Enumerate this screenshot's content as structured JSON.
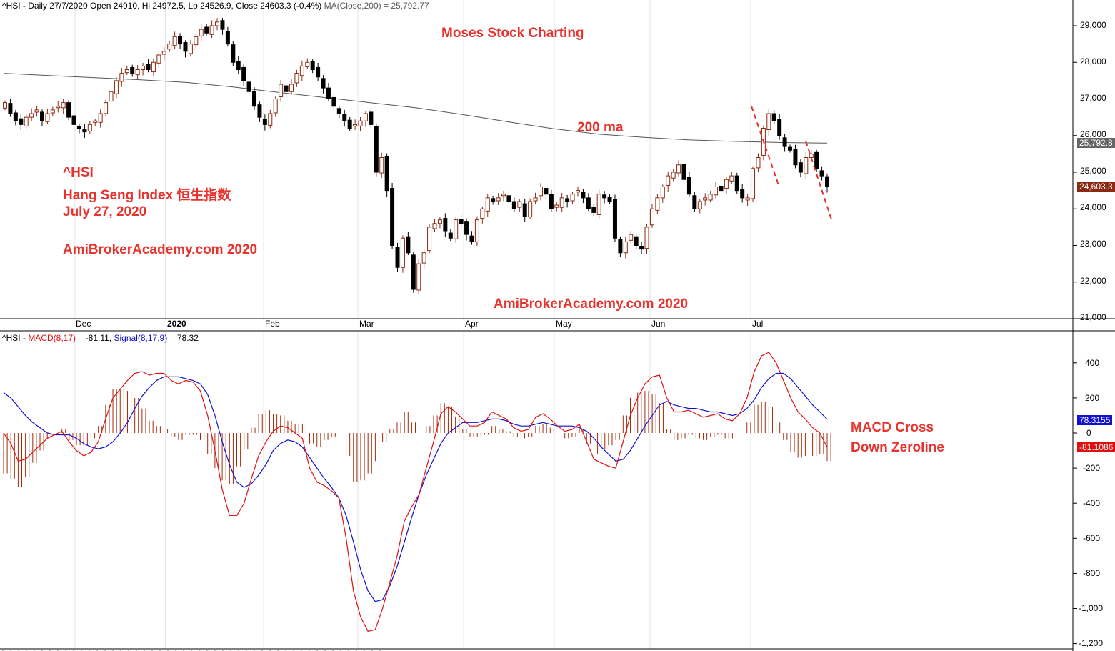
{
  "header": {
    "price_title": "^HSI - Daily 27/7/2020 Open 24910, Hi 24972.5, Lo 24526.9, Close 24603.3 (-0.4%)",
    "ma_title": "MA(Close,200) = 25,792.77",
    "macd_prefix": "^HSI - ",
    "macd_name": "MACD(8,17)",
    "macd_value": " = -81.11, ",
    "signal_name": "Signal(8,17,9)",
    "signal_value": " = 78.32"
  },
  "annotations": {
    "brand_top": "Moses Stock Charting",
    "ma_label": "200 ma",
    "ticker": "^HSI",
    "index_name": "Hang Seng Index 恒生指数",
    "date": "July 27, 2020",
    "site_left": "AmiBrokerAcademy.com  2020",
    "site_bottom": "AmiBrokerAcademy.com  2020",
    "macd_note_1": "MACD Cross",
    "macd_note_2": "Down Zeroline"
  },
  "colors": {
    "up_candle": "#8b2a10",
    "down_candle": "#000000",
    "ma_line": "#555555",
    "macd_line": "#e01010",
    "signal_line": "#1010d0",
    "histogram": "#a52a08",
    "annotation": "#e8322d"
  },
  "chart_data": [
    {
      "type": "candlestick",
      "ticker": "^HSI",
      "x_labels": [
        "Dec",
        "2020",
        "Feb",
        "Mar",
        "Apr",
        "May",
        "Jun",
        "Jul"
      ],
      "y_ticks": [
        "29,000",
        "28,000",
        "27,000",
        "26,000",
        "25,000",
        "24,000",
        "23,000",
        "22,000",
        "21,000"
      ],
      "ylim": [
        20950,
        29450
      ],
      "ma_period": 200,
      "ma_last_label": "25,792.8",
      "close_last_label": "24,603.3",
      "close_series": [
        26900,
        26600,
        26400,
        26300,
        26500,
        26600,
        26700,
        26400,
        26600,
        26700,
        26800,
        26900,
        26500,
        26300,
        26200,
        26100,
        26300,
        26400,
        26600,
        26900,
        27200,
        27500,
        27700,
        27800,
        27700,
        27800,
        27900,
        27800,
        28000,
        28200,
        28300,
        28500,
        28700,
        28500,
        28300,
        28500,
        28700,
        28900,
        28800,
        29000,
        29100,
        28900,
        28500,
        28000,
        27800,
        27500,
        27200,
        26800,
        26500,
        26300,
        26600,
        27000,
        27400,
        27200,
        27400,
        27700,
        27900,
        28000,
        27800,
        27600,
        27300,
        27000,
        26800,
        26600,
        26400,
        26200,
        26300,
        26400,
        26600,
        26300,
        25000,
        25400,
        24500,
        23000,
        22400,
        23200,
        22800,
        21800,
        22500,
        22800,
        23500,
        23600,
        23700,
        23400,
        23200,
        23700,
        23600,
        23300,
        23100,
        23700,
        24000,
        24300,
        24200,
        24300,
        24400,
        24200,
        24000,
        24200,
        23800,
        24200,
        24300,
        24600,
        24400,
        24000,
        24100,
        24300,
        24200,
        24400,
        24500,
        24300,
        24000,
        23900,
        24400,
        24300,
        24200,
        23200,
        22800,
        23100,
        23300,
        23000,
        22900,
        23500,
        24000,
        24300,
        24600,
        24900,
        25000,
        25200,
        24800,
        24400,
        24000,
        24200,
        24300,
        24400,
        24600,
        24500,
        24800,
        24900,
        24500,
        24300,
        24300,
        25100,
        25400,
        26200,
        26600,
        26400,
        26000,
        25700,
        25600,
        25200,
        25000,
        25400,
        25500,
        25100,
        24900,
        24600
      ],
      "ma_series": [
        27700,
        27640,
        27580,
        27520,
        27450,
        27330,
        27180,
        27040,
        26900,
        26760,
        26580,
        26380,
        26190,
        26040,
        25950,
        25880,
        25840,
        25810,
        25795
      ]
    },
    {
      "type": "line",
      "title": "MACD(8,17)",
      "y_ticks": [
        "400",
        "200",
        "0",
        "-200",
        "-400",
        "-600",
        "-800",
        "-1,000",
        "-1,200"
      ],
      "ylim": [
        -1230,
        560
      ],
      "series": [
        {
          "name": "MACD(8,17)",
          "last_label": "-81.1086",
          "values": [
            0,
            -60,
            -160,
            -150,
            -110,
            -70,
            -30,
            -10,
            10,
            -50,
            -100,
            -130,
            -110,
            -50,
            80,
            200,
            250,
            300,
            340,
            350,
            330,
            340,
            340,
            300,
            280,
            300,
            290,
            240,
            100,
            -100,
            -320,
            -470,
            -470,
            -400,
            -260,
            -130,
            -50,
            10,
            40,
            30,
            0,
            -30,
            -200,
            -280,
            -300,
            -330,
            -370,
            -600,
            -900,
            -1050,
            -1130,
            -1120,
            -1000,
            -850,
            -700,
            -500,
            -420,
            -350,
            -200,
            -50,
            110,
            150,
            120,
            80,
            40,
            40,
            60,
            120,
            100,
            80,
            30,
            10,
            20,
            90,
            110,
            80,
            40,
            10,
            20,
            50,
            -50,
            -150,
            -170,
            -190,
            -200,
            -50,
            100,
            200,
            280,
            320,
            330,
            200,
            120,
            120,
            130,
            110,
            90,
            100,
            110,
            80,
            70,
            110,
            200,
            350,
            440,
            460,
            400,
            300,
            200,
            120,
            80,
            30,
            0,
            -81.11
          ]
        },
        {
          "name": "Signal(8,17,9)",
          "last_label": "78.3155",
          "values": [
            230,
            200,
            150,
            100,
            60,
            30,
            0,
            -10,
            -10,
            -10,
            -30,
            -60,
            -80,
            -90,
            -80,
            -50,
            0,
            60,
            140,
            210,
            260,
            300,
            320,
            320,
            320,
            310,
            300,
            280,
            220,
            100,
            -50,
            -180,
            -280,
            -310,
            -290,
            -240,
            -180,
            -100,
            -60,
            -40,
            -50,
            -80,
            -140,
            -200,
            -260,
            -310,
            -370,
            -470,
            -620,
            -780,
            -900,
            -960,
            -950,
            -870,
            -760,
            -620,
            -480,
            -350,
            -240,
            -150,
            -60,
            0,
            30,
            60,
            60,
            60,
            70,
            80,
            80,
            70,
            50,
            40,
            40,
            50,
            60,
            50,
            40,
            40,
            40,
            30,
            10,
            -30,
            -80,
            -120,
            -160,
            -150,
            -100,
            -30,
            40,
            100,
            160,
            180,
            160,
            150,
            140,
            140,
            130,
            120,
            120,
            110,
            100,
            110,
            140,
            190,
            260,
            310,
            340,
            340,
            310,
            260,
            210,
            160,
            120,
            78.32
          ]
        }
      ]
    }
  ]
}
